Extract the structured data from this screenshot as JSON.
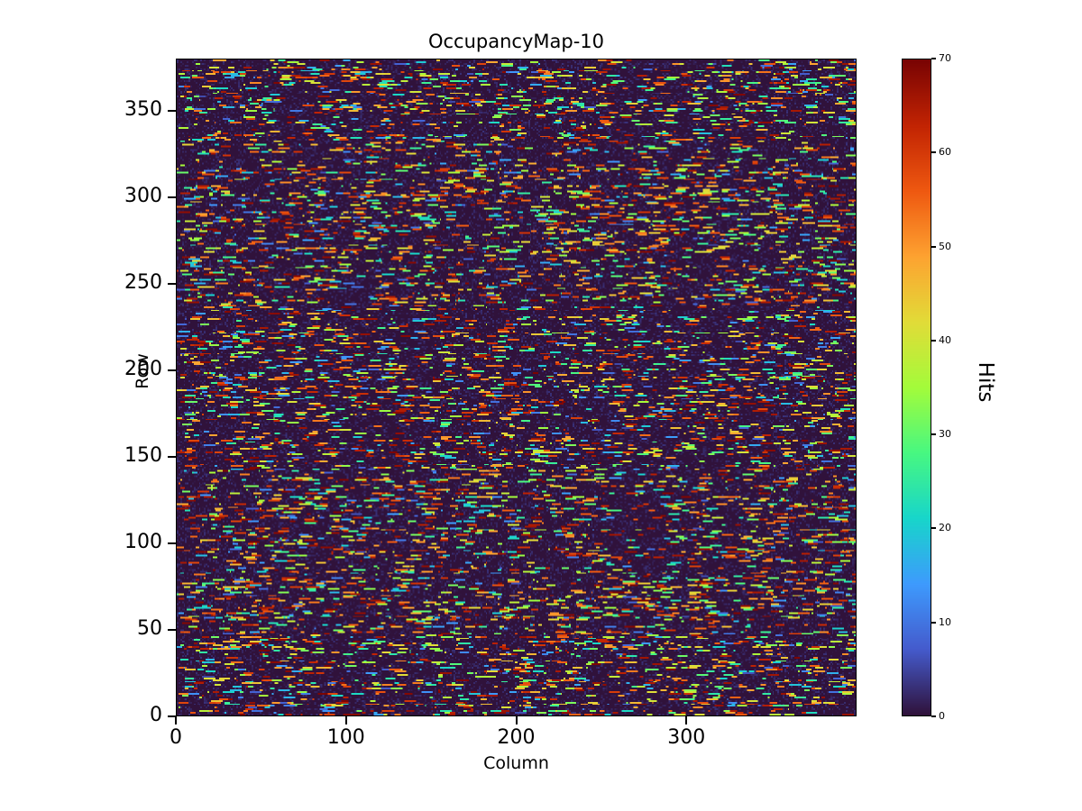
{
  "chart_data": {
    "type": "heatmap",
    "title": "OccupancyMap-10",
    "xlabel": "Column",
    "ylabel": "Row",
    "colorbar_label": "Hits",
    "x_ticks": [
      0,
      100,
      200,
      300
    ],
    "y_ticks": [
      0,
      50,
      100,
      150,
      200,
      250,
      300,
      350
    ],
    "colorbar_ticks": [
      0,
      10,
      20,
      30,
      40,
      50,
      60,
      70
    ],
    "xlim": [
      0,
      400
    ],
    "ylim": [
      0,
      380
    ],
    "vmin": 0,
    "vmax": 70,
    "colormap": "turbo",
    "grid": {
      "cols": 400,
      "rows": 380
    },
    "legend_position": "right-colorbar",
    "background_value": 0,
    "pattern": "dense random short horizontal dash segments of hit values (5-70) scattered over a near-zero dark background"
  }
}
